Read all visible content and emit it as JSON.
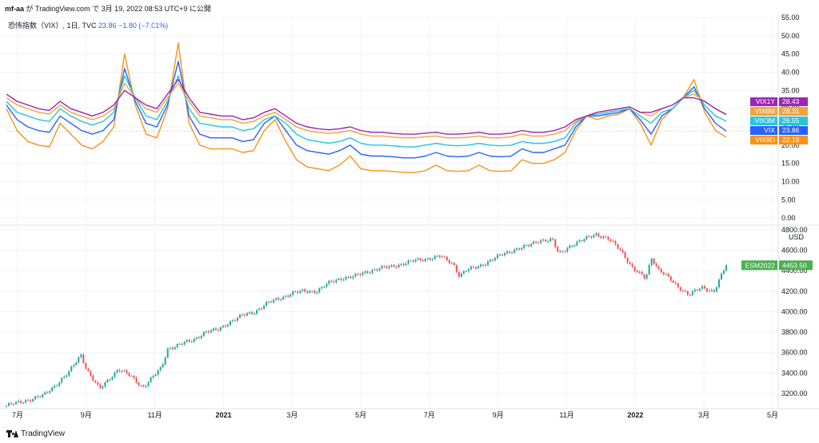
{
  "header": {
    "author": "mf-aa",
    "published_text": "が TradingView.com で 3月 19, 2022 08:53 UTC+9 に公開"
  },
  "legend": {
    "name": "恐怖指数（VIX）, 1日, TVC",
    "value": "23.86",
    "change": "−1.80 (−7.01%)"
  },
  "footer": {
    "brand": "TradingView"
  },
  "colors": {
    "VIX1Y": "#9c27b0",
    "VIX6M": "#f2a33a",
    "VIX3M": "#26c6da",
    "VIX": "#2962ff",
    "VIX9D": "#f7931a",
    "candle_up": "#26a69a",
    "candle_down": "#ef5350",
    "es_label": "#4caf50"
  },
  "chart_data": [
    {
      "type": "line",
      "title": "",
      "ylim": [
        -1.5,
        55
      ],
      "y_ticks": [
        "55.00",
        "50.00",
        "45.00",
        "40.00",
        "35.00",
        "30.00",
        "25.00",
        "20.00",
        "15.00",
        "10.00",
        "5.00",
        "0.00"
      ],
      "x_labels": [
        "7月",
        "9月",
        "11月",
        "2021",
        "3月",
        "5月",
        "7月",
        "9月",
        "11月",
        "2022",
        "3月",
        "5月"
      ],
      "series": [
        {
          "name": "VIX1Y",
          "last": "28.43",
          "values": [
            34,
            32,
            31,
            30,
            29.5,
            32,
            30,
            29,
            28,
            29,
            31,
            35,
            33,
            31,
            30,
            34,
            38,
            33,
            29,
            28.5,
            28,
            28,
            27,
            27.5,
            29,
            30,
            28,
            26,
            25,
            24.5,
            24.2,
            24.5,
            25,
            24,
            23.5,
            23.5,
            23.2,
            23,
            23,
            23.3,
            23.5,
            23,
            23,
            23.2,
            23.5,
            23,
            23,
            23.3,
            24,
            23.5,
            23.5,
            24,
            25,
            27,
            28,
            29,
            29.5,
            30,
            30.5,
            29,
            29,
            30,
            31,
            33,
            33,
            32,
            30,
            28.43
          ]
        },
        {
          "name": "VIX6M",
          "last": "28.31",
          "values": [
            33,
            31,
            30,
            29,
            28.5,
            31,
            29,
            28,
            27,
            28,
            30,
            37,
            33,
            30,
            29,
            33,
            37,
            32,
            28,
            27.5,
            27,
            27,
            26,
            26.5,
            28,
            29,
            27,
            25,
            24,
            23.5,
            23.2,
            23.5,
            24,
            23,
            22.5,
            22.5,
            22.2,
            22,
            22,
            22.3,
            22.5,
            22,
            22,
            22.2,
            22.5,
            22,
            22,
            22.3,
            23,
            22.5,
            22.5,
            23,
            24,
            26.5,
            28,
            29,
            29.5,
            30,
            30.5,
            29,
            28,
            30,
            31,
            33,
            34,
            32,
            30,
            28.31
          ]
        },
        {
          "name": "VIX3M",
          "last": "26.55",
          "values": [
            32,
            29,
            28,
            27,
            26.5,
            30,
            28,
            26.5,
            25.5,
            26.5,
            29,
            39,
            33,
            28,
            27,
            32,
            39,
            30,
            26,
            25.5,
            25,
            25,
            24,
            24.5,
            27,
            28,
            26,
            23,
            21.5,
            21,
            20.5,
            21,
            22,
            20.5,
            20,
            20,
            19.8,
            19.5,
            19.5,
            20,
            20.5,
            20,
            19.8,
            20,
            20.5,
            20,
            19.8,
            20,
            21,
            20.5,
            20.5,
            21,
            22,
            26,
            28,
            28.5,
            29,
            29.5,
            30,
            28,
            26,
            29,
            30,
            33,
            35,
            31,
            28,
            26.55
          ]
        },
        {
          "name": "VIX",
          "last": "23.86",
          "values": [
            31,
            27,
            25,
            24,
            23.5,
            28,
            26,
            24,
            23,
            24,
            27,
            41,
            32,
            26,
            25,
            31,
            43,
            28,
            23,
            22,
            22,
            22,
            21,
            21.5,
            26,
            28,
            24,
            20,
            18.5,
            18,
            17.5,
            18.5,
            20,
            17.5,
            17,
            17,
            16.8,
            16.5,
            16.5,
            17,
            18,
            17,
            16.8,
            17,
            18,
            17,
            16.8,
            17,
            19,
            18,
            18,
            19,
            20,
            25,
            28,
            28,
            28.5,
            29,
            30,
            27,
            23,
            28,
            30,
            33,
            36,
            30,
            26,
            23.86
          ]
        },
        {
          "name": "VIX9D",
          "last": "22.19",
          "values": [
            30,
            24,
            21,
            20,
            19.5,
            26,
            23,
            20,
            19,
            21,
            25,
            45,
            31,
            23,
            22,
            30,
            48,
            26,
            20,
            19,
            19,
            19,
            18,
            18.5,
            24,
            27,
            21,
            16,
            14,
            13.5,
            13,
            14.5,
            17,
            13.5,
            13,
            13,
            12.8,
            12.5,
            12.5,
            13,
            14.5,
            13,
            12.8,
            13,
            14.5,
            13,
            12.8,
            13,
            16,
            15,
            15,
            16,
            18,
            24,
            28,
            27,
            28,
            28.5,
            30,
            26,
            20,
            27,
            30,
            33,
            38,
            29,
            24,
            22.19
          ]
        }
      ]
    },
    {
      "type": "candlestick",
      "title": "",
      "series_name": "ESM2022",
      "last": "4453.50",
      "unit": "USD",
      "ylim": [
        3060,
        4830
      ],
      "y_ticks": [
        "4800.00",
        "4600.00",
        "4400.00",
        "4200.00",
        "4000.00",
        "3800.00",
        "3600.00",
        "3400.00",
        "3200.00"
      ],
      "path_points": [
        [
          0,
          3080
        ],
        [
          6,
          3180
        ],
        [
          10,
          3400
        ],
        [
          12,
          3580
        ],
        [
          13,
          3430
        ],
        [
          15,
          3240
        ],
        [
          18,
          3440
        ],
        [
          20,
          3370
        ],
        [
          22,
          3260
        ],
        [
          25,
          3450
        ],
        [
          26,
          3640
        ],
        [
          28,
          3680
        ],
        [
          30,
          3720
        ],
        [
          32,
          3800
        ],
        [
          34,
          3820
        ],
        [
          36,
          3900
        ],
        [
          38,
          3960
        ],
        [
          40,
          4000
        ],
        [
          42,
          4080
        ],
        [
          44,
          4130
        ],
        [
          46,
          4180
        ],
        [
          48,
          4200
        ],
        [
          50,
          4200
        ],
        [
          52,
          4280
        ],
        [
          54,
          4330
        ],
        [
          56,
          4340
        ],
        [
          58,
          4390
        ],
        [
          60,
          4420
        ],
        [
          62,
          4440
        ],
        [
          64,
          4470
        ],
        [
          66,
          4500
        ],
        [
          68,
          4520
        ],
        [
          70,
          4540
        ],
        [
          71,
          4500
        ],
        [
          72,
          4470
        ],
        [
          73,
          4350
        ],
        [
          74,
          4400
        ],
        [
          76,
          4440
        ],
        [
          78,
          4500
        ],
        [
          80,
          4560
        ],
        [
          82,
          4610
        ],
        [
          84,
          4640
        ],
        [
          86,
          4700
        ],
        [
          88,
          4700
        ],
        [
          89,
          4560
        ],
        [
          91,
          4650
        ],
        [
          93,
          4700
        ],
        [
          95,
          4760
        ],
        [
          97,
          4710
        ],
        [
          99,
          4600
        ],
        [
          101,
          4420
        ],
        [
          103,
          4320
        ],
        [
          104,
          4530
        ],
        [
          105,
          4420
        ],
        [
          106,
          4370
        ],
        [
          108,
          4250
        ],
        [
          110,
          4170
        ],
        [
          112,
          4230
        ],
        [
          114,
          4200
        ],
        [
          115,
          4330
        ],
        [
          116,
          4453.5
        ]
      ]
    }
  ]
}
